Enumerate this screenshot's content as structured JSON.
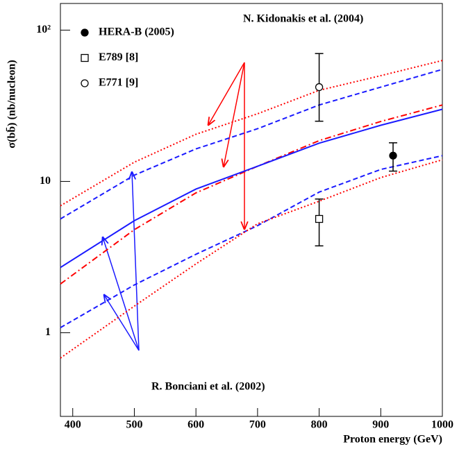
{
  "chart_data": {
    "type": "line",
    "xlabel": "Proton energy (GeV)",
    "ylabel": "σ(bb̄) (nb/nucleon)",
    "log_y": true,
    "xlim": [
      380,
      1000
    ],
    "xticks": [
      400,
      500,
      600,
      700,
      800,
      900,
      1000
    ],
    "ylim": [
      0.28,
      150
    ],
    "yticks": [
      1,
      10,
      {
        "value": 100,
        "label": "10²"
      }
    ],
    "x": [
      380,
      500,
      600,
      700,
      800,
      900,
      1000
    ],
    "series": [
      {
        "color": "#ff0000",
        "style": "dotted",
        "values": [
          6.9,
          13.4,
          20.5,
          28,
          40,
          50,
          63
        ]
      },
      {
        "color": "#1a1aff",
        "style": "dashed",
        "values": [
          5.65,
          11,
          16.4,
          22.3,
          32,
          42,
          55
        ]
      },
      {
        "color": "#ff0000",
        "style": "dashdot",
        "values": [
          2.1,
          4.8,
          8.4,
          12.6,
          18.6,
          24.9,
          32
        ]
      },
      {
        "color": "#1a1aff",
        "style": "solid",
        "values": [
          2.7,
          5.5,
          8.9,
          12.6,
          17.9,
          23.5,
          30
        ]
      },
      {
        "color": "#1a1aff",
        "style": "dashed",
        "values": [
          1.08,
          2.07,
          3.3,
          5.1,
          8.5,
          12,
          14.8
        ]
      },
      {
        "color": "#ff0000",
        "style": "dotted",
        "values": [
          0.68,
          1.5,
          2.85,
          5.25,
          7.4,
          10.6,
          13.9
        ]
      }
    ],
    "points": [
      {
        "name": "HERA-B (2005)",
        "marker": "filled-circle",
        "x": 920,
        "y": 14.8,
        "err_high": 3.2,
        "err_low": 3.1
      },
      {
        "name": "E789 [8]",
        "marker": "open-square",
        "x": 800,
        "y": 5.65,
        "err_high": 2.0,
        "err_low": 1.9
      },
      {
        "name": "E771 [9]",
        "marker": "open-circle",
        "x": 800,
        "y": 42,
        "err_high": 28,
        "err_low": 17
      }
    ],
    "annotations": [
      "N. Kidonakis et al. (2004)",
      "R. Bonciani et al. (2002)"
    ]
  }
}
